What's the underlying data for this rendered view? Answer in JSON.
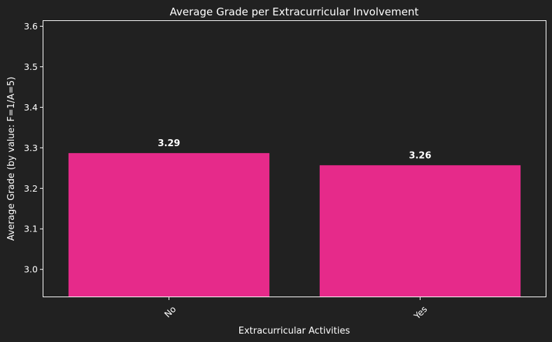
{
  "chart_data": {
    "type": "bar",
    "title": "Average Grade per Extracurricular Involvement",
    "xlabel": "Extracurricular Activities",
    "ylabel": "Average Grade (by value: F=1/A=5)",
    "categories": [
      "No",
      "Yes"
    ],
    "values": [
      3.287,
      3.257
    ],
    "value_labels": [
      "3.29",
      "3.26"
    ],
    "ylim": [
      2.933,
      3.613
    ],
    "yticks": [
      3.0,
      3.1,
      3.2,
      3.3,
      3.4,
      3.5,
      3.6
    ],
    "ytick_labels": [
      "3.0",
      "3.1",
      "3.2",
      "3.3",
      "3.4",
      "3.5",
      "3.6"
    ],
    "grid": false,
    "legend": "none",
    "xtick_rotation": 45,
    "colors": {
      "background": "#212121",
      "bar": "#e62a8a",
      "text": "#ffffff",
      "axes": "#ffffff"
    }
  }
}
